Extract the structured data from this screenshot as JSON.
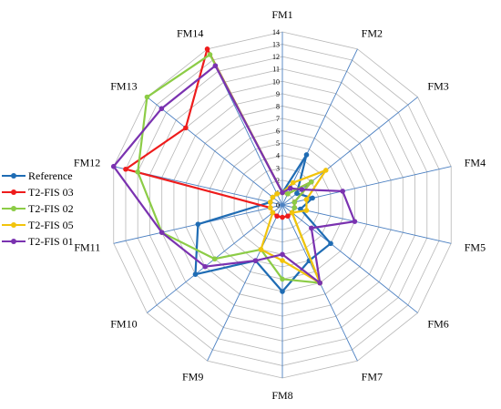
{
  "chart_data": {
    "type": "radar",
    "axes": [
      "FM1",
      "FM2",
      "FM3",
      "FM4",
      "FM5",
      "FM6",
      "FM7",
      "FM8",
      "FM9",
      "FM10",
      "FM11",
      "FM12",
      "FM13",
      "FM14"
    ],
    "rlim": [
      0,
      14
    ],
    "ticks": [
      "0",
      "1",
      "2",
      "3",
      "4",
      "5",
      "6",
      "7",
      "8",
      "9",
      "10",
      "11",
      "12",
      "13",
      "14"
    ],
    "grid": true,
    "legend_position": "left",
    "series": [
      {
        "name": "Reference",
        "color": "#1f6cb4",
        "values": [
          1,
          4.5,
          1.5,
          2.5,
          1.5,
          5,
          5,
          7,
          5,
          9,
          7,
          1,
          1,
          1
        ]
      },
      {
        "name": "T2-FIS 03",
        "color": "#ee1c1c",
        "values": [
          1,
          1,
          3,
          1,
          1,
          1,
          1,
          1,
          1,
          1,
          1,
          13,
          10,
          14
        ]
      },
      {
        "name": "T2-FIS 02",
        "color": "#8ccc46",
        "values": [
          1,
          1,
          3,
          1,
          1,
          1,
          7,
          6,
          4,
          7,
          10,
          12,
          14,
          13.5
        ]
      },
      {
        "name": "T2-FIS 05",
        "color": "#f2c40c",
        "values": [
          1,
          2,
          4.5,
          2,
          2,
          1,
          7,
          4.5,
          4,
          1,
          1,
          1,
          1,
          1
        ]
      },
      {
        "name": "T2-FIS 01",
        "color": "#7a32b0",
        "values": [
          1,
          1.5,
          2,
          5,
          6,
          3,
          7,
          4,
          5,
          8,
          10,
          14,
          12.5,
          12.5
        ]
      }
    ]
  }
}
